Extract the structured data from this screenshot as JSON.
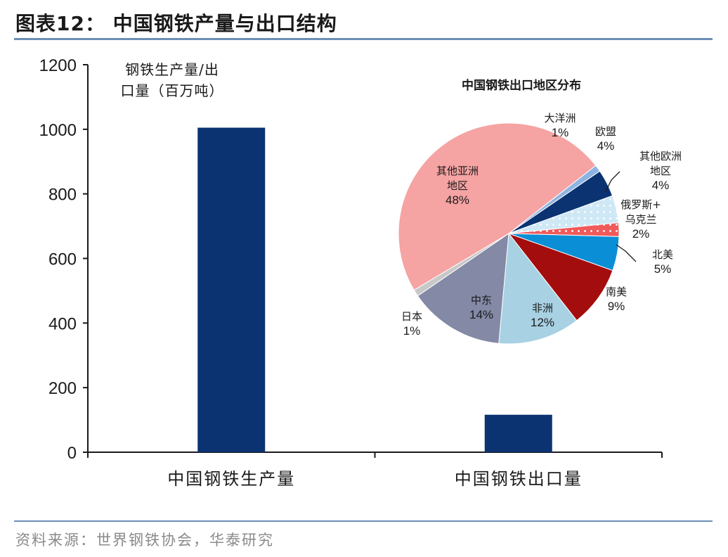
{
  "header": {
    "title": "图表12：  中国钢铁产量与出口结构"
  },
  "footer": {
    "source": "资料来源：世界钢铁协会，华泰研究"
  },
  "colors": {
    "bar": "#0b3372",
    "rule": "#6d8fb5"
  },
  "chart_data": [
    {
      "type": "bar",
      "ylabel_lines": [
        "钢铁生产量/出",
        "口量（百万吨）"
      ],
      "categories": [
        "中国钢铁生产量",
        "中国钢铁出口量"
      ],
      "values": [
        1005,
        116
      ],
      "ylim": [
        0,
        1200
      ],
      "yticks": [
        0,
        200,
        400,
        600,
        800,
        1000,
        1200
      ],
      "grid": false
    },
    {
      "type": "pie",
      "title": "中国钢铁出口地区分布",
      "slices": [
        {
          "label": "大洋洲",
          "value": 1,
          "pct": "1%",
          "color": "#8db4e2",
          "pattern": "solid"
        },
        {
          "label": "欧盟",
          "value": 4,
          "pct": "4%",
          "color": "#0b3372",
          "pattern": "solid"
        },
        {
          "label": "其他欧洲地区",
          "value": 4,
          "pct": "4%",
          "color": "#cfe8f6",
          "pattern": "dots"
        },
        {
          "label": "俄罗斯+乌克兰",
          "value": 2,
          "pct": "2%",
          "color": "#f05a5a",
          "pattern": "dots"
        },
        {
          "label": "北美",
          "value": 5,
          "pct": "5%",
          "color": "#0a8fd6",
          "pattern": "solid"
        },
        {
          "label": "南美",
          "value": 9,
          "pct": "9%",
          "color": "#a30d0d",
          "pattern": "solid"
        },
        {
          "label": "非洲",
          "value": 12,
          "pct": "12%",
          "color": "#a8d1e3",
          "pattern": "solid"
        },
        {
          "label": "中东",
          "value": 14,
          "pct": "14%",
          "color": "#8489a6",
          "pattern": "solid"
        },
        {
          "label": "日本",
          "value": 1,
          "pct": "1%",
          "color": "#c8c8c8",
          "pattern": "solid"
        },
        {
          "label": "其他亚洲地区",
          "value": 48,
          "pct": "48%",
          "color": "#f6a3a3",
          "pattern": "solid"
        }
      ],
      "label_lines": {
        "大洋洲": [
          "大洋洲",
          "1%"
        ],
        "欧盟": [
          "欧盟",
          "4%"
        ],
        "其他欧洲地区": [
          "其他欧洲",
          "地区",
          "4%"
        ],
        "俄罗斯+乌克兰": [
          "俄罗斯+",
          "乌克兰",
          "2%"
        ],
        "北美": [
          "北美",
          "5%"
        ],
        "南美": [
          "南美",
          "9%"
        ],
        "非洲": [
          "非洲",
          "12%"
        ],
        "中东": [
          "中东",
          "14%"
        ],
        "日本": [
          "日本",
          "1%"
        ],
        "其他亚洲地区": [
          "其他亚洲",
          "地区",
          "48%"
        ]
      }
    }
  ]
}
